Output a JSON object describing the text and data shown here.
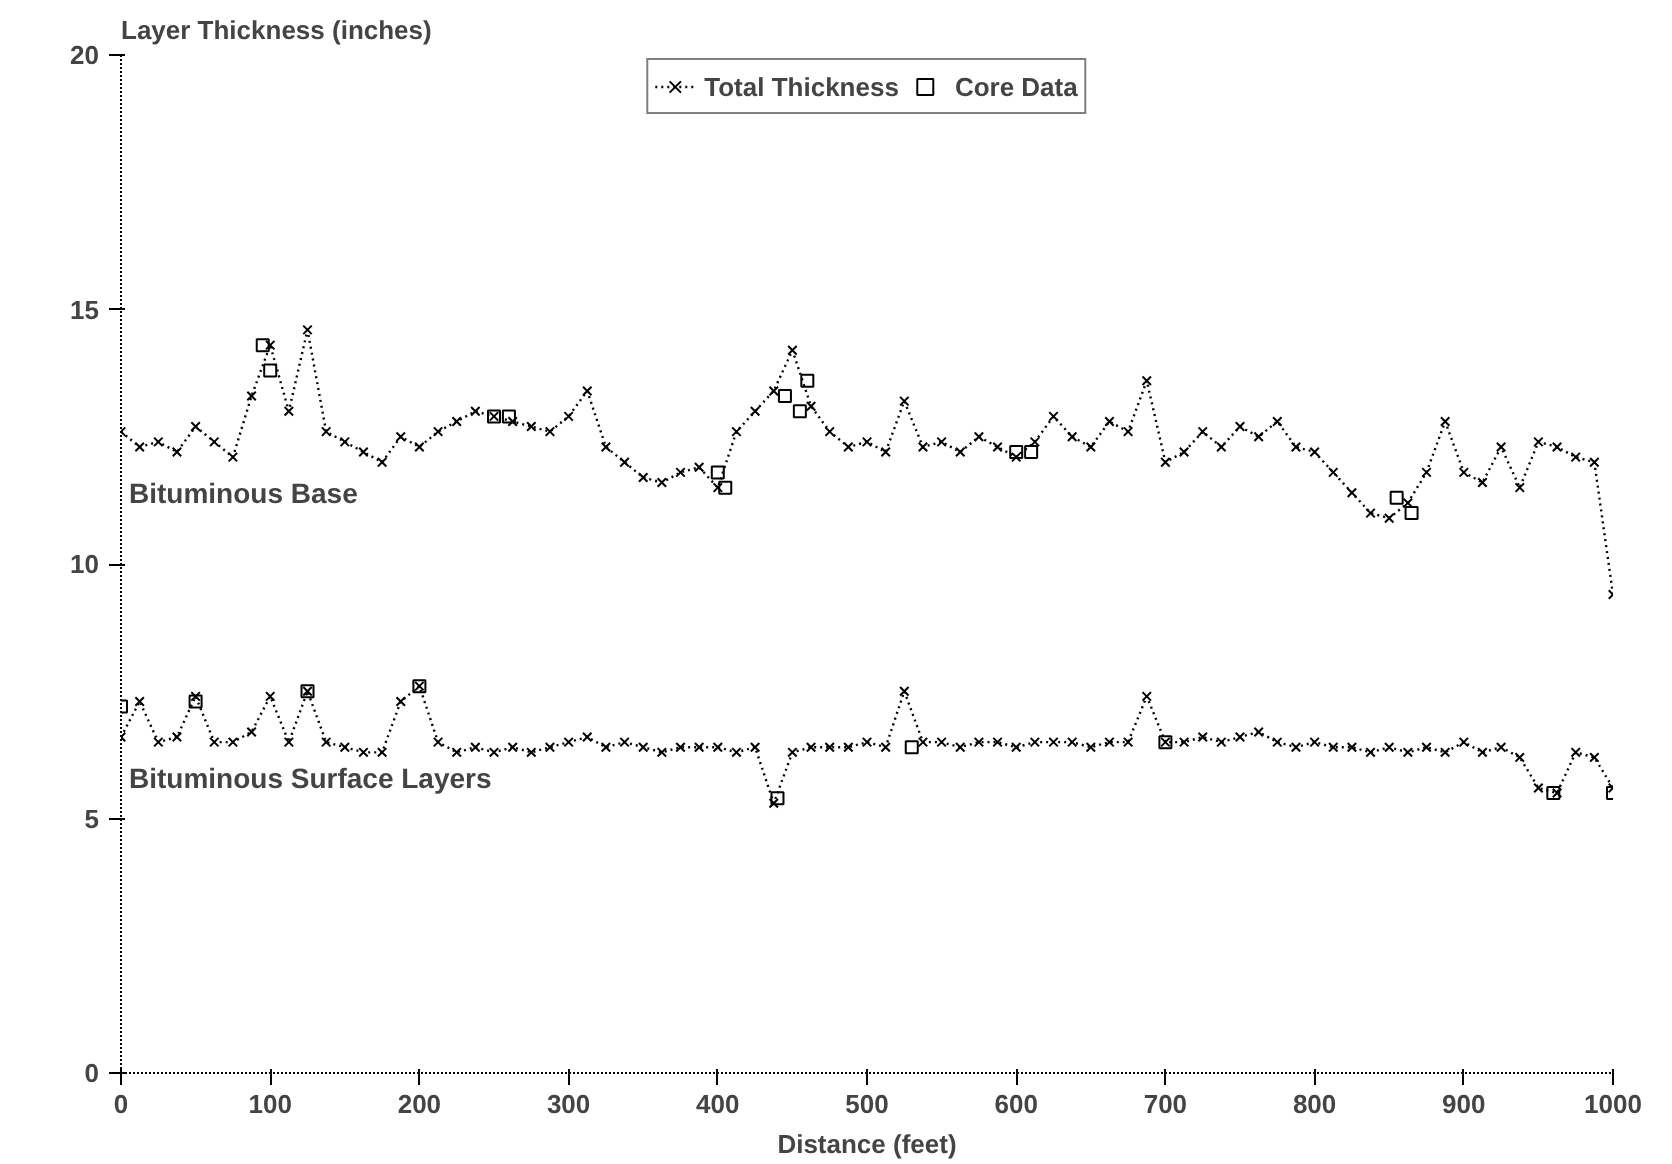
{
  "chart_data": {
    "type": "line",
    "ylabel": "Layer Thickness (inches)",
    "xlabel": "Distance (feet)",
    "xlim": [
      0,
      1000
    ],
    "xticks": [
      0,
      100,
      200,
      300,
      400,
      500,
      600,
      700,
      800,
      900,
      1000
    ],
    "ylim": [
      0,
      20
    ],
    "yticks": [
      0,
      5,
      10,
      15,
      20
    ],
    "grid": false,
    "legend": "top",
    "series": [
      {
        "name": "Total Thickness",
        "color": "#000000",
        "marker": "cross",
        "line_style": "dotted",
        "x": [
          0,
          12.5,
          25,
          37.5,
          50,
          62.5,
          75,
          87.5,
          100,
          112.5,
          125,
          137.5,
          150,
          162.5,
          175,
          187.5,
          200,
          212.5,
          225,
          237.5,
          250,
          262.5,
          275,
          287.5,
          300,
          312.5,
          325,
          337.5,
          350,
          362.5,
          375,
          387.5,
          400,
          412.5,
          425,
          437.5,
          450,
          462.5,
          475,
          487.5,
          500,
          512.5,
          525,
          537.5,
          550,
          562.5,
          575,
          587.5,
          600,
          612.5,
          625,
          637.5,
          650,
          662.5,
          675,
          687.5,
          700,
          712.5,
          725,
          737.5,
          750,
          762.5,
          775,
          787.5,
          800,
          812.5,
          825,
          837.5,
          850,
          862.5,
          875,
          887.5,
          900,
          912.5,
          925,
          937.5,
          950,
          962.5,
          975,
          987.5,
          1000
        ],
        "values": [
          12.6,
          12.3,
          12.4,
          12.2,
          12.7,
          12.4,
          12.1,
          13.3,
          14.3,
          13.0,
          14.6,
          12.6,
          12.4,
          12.2,
          12.0,
          12.5,
          12.3,
          12.6,
          12.8,
          13.0,
          12.9,
          12.8,
          12.7,
          12.6,
          12.9,
          13.4,
          12.3,
          12.0,
          11.7,
          11.6,
          11.8,
          11.9,
          11.5,
          12.6,
          13.0,
          13.4,
          14.2,
          13.1,
          12.6,
          12.3,
          12.4,
          12.2,
          13.2,
          12.3,
          12.4,
          12.2,
          12.5,
          12.3,
          12.1,
          12.4,
          12.9,
          12.5,
          12.3,
          12.8,
          12.6,
          13.6,
          12.0,
          12.2,
          12.6,
          12.3,
          12.7,
          12.5,
          12.8,
          12.3,
          12.2,
          11.8,
          11.4,
          11.0,
          10.9,
          11.2,
          11.8,
          12.8,
          11.8,
          11.6,
          12.3,
          11.5,
          12.4,
          12.3,
          12.1,
          12.0,
          9.4
        ]
      },
      {
        "color": "#000000",
        "marker": "cross",
        "line_style": "dotted",
        "x": [
          0,
          12.5,
          25,
          37.5,
          50,
          62.5,
          75,
          87.5,
          100,
          112.5,
          125,
          137.5,
          150,
          162.5,
          175,
          187.5,
          200,
          212.5,
          225,
          237.5,
          250,
          262.5,
          275,
          287.5,
          300,
          312.5,
          325,
          337.5,
          350,
          362.5,
          375,
          387.5,
          400,
          412.5,
          425,
          437.5,
          450,
          462.5,
          475,
          487.5,
          500,
          512.5,
          525,
          537.5,
          550,
          562.5,
          575,
          587.5,
          600,
          612.5,
          625,
          637.5,
          650,
          662.5,
          675,
          687.5,
          700,
          712.5,
          725,
          737.5,
          750,
          762.5,
          775,
          787.5,
          800,
          812.5,
          825,
          837.5,
          850,
          862.5,
          875,
          887.5,
          900,
          912.5,
          925,
          937.5,
          950,
          962.5,
          975,
          987.5,
          1000
        ],
        "values": [
          6.6,
          7.3,
          6.5,
          6.6,
          7.4,
          6.5,
          6.5,
          6.7,
          7.4,
          6.5,
          7.5,
          6.5,
          6.4,
          6.3,
          6.3,
          7.3,
          7.6,
          6.5,
          6.3,
          6.4,
          6.3,
          6.4,
          6.3,
          6.4,
          6.5,
          6.6,
          6.4,
          6.5,
          6.4,
          6.3,
          6.4,
          6.4,
          6.4,
          6.3,
          6.4,
          5.3,
          6.3,
          6.4,
          6.4,
          6.4,
          6.5,
          6.4,
          7.5,
          6.5,
          6.5,
          6.4,
          6.5,
          6.5,
          6.4,
          6.5,
          6.5,
          6.5,
          6.4,
          6.5,
          6.5,
          7.4,
          6.5,
          6.5,
          6.6,
          6.5,
          6.6,
          6.7,
          6.5,
          6.4,
          6.5,
          6.4,
          6.4,
          6.3,
          6.4,
          6.3,
          6.4,
          6.3,
          6.5,
          6.3,
          6.4,
          6.2,
          5.6,
          5.5,
          6.3,
          6.2,
          5.6
        ]
      },
      {
        "name": "Core Data",
        "type": "scatter",
        "color": "#000000",
        "marker": "square",
        "x": [
          95,
          100,
          250,
          260,
          400,
          405,
          445,
          455,
          460,
          600,
          610,
          855,
          865,
          0,
          50,
          125,
          200,
          440,
          530,
          700,
          960,
          1000
        ],
        "values": [
          14.3,
          13.8,
          12.9,
          12.9,
          11.8,
          11.5,
          13.3,
          13.0,
          13.6,
          12.2,
          12.2,
          11.3,
          11.0,
          7.2,
          7.3,
          7.5,
          7.6,
          5.4,
          6.4,
          6.5,
          5.5,
          5.5
        ]
      }
    ],
    "annotations": [
      "Bituminous Base",
      "Bituminous Surface Layers"
    ]
  }
}
